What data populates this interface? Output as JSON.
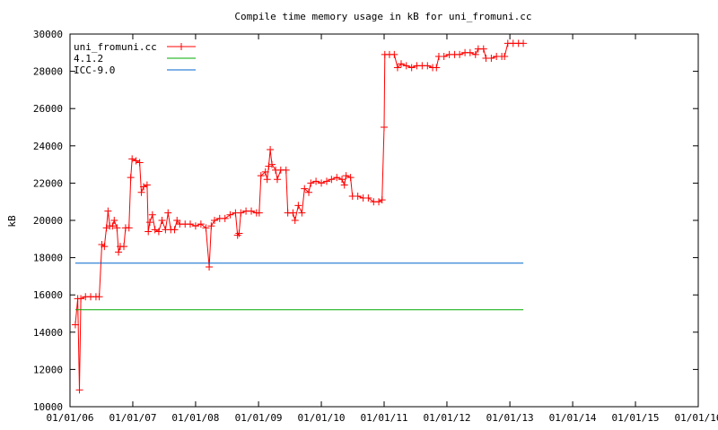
{
  "chart_data": {
    "type": "line",
    "title": "Compile time memory usage in kB for uni_fromuni.cc",
    "xlabel": "",
    "ylabel": "kB",
    "x_scale": "date",
    "xlim": [
      "2006-01-01",
      "2016-01-01"
    ],
    "ylim": [
      10000,
      30000
    ],
    "x_ticks": [
      "01/01/06",
      "01/01/07",
      "01/01/08",
      "01/01/09",
      "01/01/10",
      "01/01/11",
      "01/01/12",
      "01/01/13",
      "01/01/14",
      "01/01/15",
      "01/01/16"
    ],
    "y_ticks": [
      10000,
      12000,
      14000,
      16000,
      18000,
      20000,
      22000,
      24000,
      26000,
      28000,
      30000
    ],
    "legend_position": "top-left",
    "grid": false,
    "series": [
      {
        "name": "uni_fromuni.cc",
        "color": "#ff0000",
        "marker": "plus",
        "points": [
          [
            "2006-02-01",
            14400
          ],
          [
            "2006-02-15",
            15800
          ],
          [
            "2006-02-25",
            10900
          ],
          [
            "2006-03-05",
            15800
          ],
          [
            "2006-04-01",
            15900
          ],
          [
            "2006-05-01",
            15900
          ],
          [
            "2006-06-01",
            15900
          ],
          [
            "2006-06-20",
            15900
          ],
          [
            "2006-07-05",
            18700
          ],
          [
            "2006-07-20",
            18600
          ],
          [
            "2006-08-01",
            19600
          ],
          [
            "2006-08-10",
            20500
          ],
          [
            "2006-08-20",
            19700
          ],
          [
            "2006-09-05",
            19700
          ],
          [
            "2006-09-15",
            20000
          ],
          [
            "2006-10-01",
            19600
          ],
          [
            "2006-10-10",
            18300
          ],
          [
            "2006-10-20",
            18600
          ],
          [
            "2006-11-10",
            18600
          ],
          [
            "2006-11-20",
            19600
          ],
          [
            "2006-12-10",
            19600
          ],
          [
            "2006-12-20",
            22300
          ],
          [
            "2006-12-28",
            23300
          ],
          [
            "2007-01-20",
            23200
          ],
          [
            "2007-02-10",
            23100
          ],
          [
            "2007-02-20",
            21500
          ],
          [
            "2007-03-05",
            21800
          ],
          [
            "2007-03-25",
            21900
          ],
          [
            "2007-04-01",
            19400
          ],
          [
            "2007-04-10",
            19900
          ],
          [
            "2007-04-25",
            20300
          ],
          [
            "2007-05-10",
            19500
          ],
          [
            "2007-06-01",
            19400
          ],
          [
            "2007-06-20",
            20000
          ],
          [
            "2007-07-10",
            19500
          ],
          [
            "2007-07-25",
            20400
          ],
          [
            "2007-08-10",
            19500
          ],
          [
            "2007-09-01",
            19500
          ],
          [
            "2007-09-15",
            20000
          ],
          [
            "2007-10-01",
            19800
          ],
          [
            "2007-11-01",
            19800
          ],
          [
            "2007-12-01",
            19800
          ],
          [
            "2008-01-01",
            19700
          ],
          [
            "2008-02-01",
            19800
          ],
          [
            "2008-03-01",
            19600
          ],
          [
            "2008-03-20",
            17500
          ],
          [
            "2008-04-01",
            19700
          ],
          [
            "2008-04-20",
            20000
          ],
          [
            "2008-05-20",
            20100
          ],
          [
            "2008-06-20",
            20100
          ],
          [
            "2008-07-20",
            20300
          ],
          [
            "2008-08-20",
            20400
          ],
          [
            "2008-09-01",
            19200
          ],
          [
            "2008-09-10",
            19300
          ],
          [
            "2008-09-20",
            20400
          ],
          [
            "2008-10-20",
            20500
          ],
          [
            "2008-11-20",
            20500
          ],
          [
            "2008-12-20",
            20400
          ],
          [
            "2009-01-05",
            20400
          ],
          [
            "2009-01-15",
            22400
          ],
          [
            "2009-02-10",
            22600
          ],
          [
            "2009-02-20",
            22200
          ],
          [
            "2009-03-01",
            22900
          ],
          [
            "2009-03-10",
            23800
          ],
          [
            "2009-03-20",
            23000
          ],
          [
            "2009-04-10",
            22700
          ],
          [
            "2009-04-20",
            22200
          ],
          [
            "2009-05-10",
            22700
          ],
          [
            "2009-06-10",
            22700
          ],
          [
            "2009-06-20",
            20400
          ],
          [
            "2009-07-20",
            20400
          ],
          [
            "2009-08-01",
            20000
          ],
          [
            "2009-08-20",
            20800
          ],
          [
            "2009-09-10",
            20400
          ],
          [
            "2009-09-25",
            21700
          ],
          [
            "2009-10-20",
            21500
          ],
          [
            "2009-11-01",
            22000
          ],
          [
            "2009-12-01",
            22100
          ],
          [
            "2010-01-01",
            22000
          ],
          [
            "2010-02-01",
            22100
          ],
          [
            "2010-03-01",
            22200
          ],
          [
            "2010-04-01",
            22300
          ],
          [
            "2010-05-01",
            22200
          ],
          [
            "2010-05-15",
            21900
          ],
          [
            "2010-05-25",
            22400
          ],
          [
            "2010-06-20",
            22300
          ],
          [
            "2010-07-01",
            21300
          ],
          [
            "2010-08-01",
            21300
          ],
          [
            "2010-09-01",
            21200
          ],
          [
            "2010-10-01",
            21200
          ],
          [
            "2010-11-01",
            21000
          ],
          [
            "2010-12-01",
            21000
          ],
          [
            "2010-12-20",
            21100
          ],
          [
            "2011-01-01",
            25000
          ],
          [
            "2011-01-05",
            28900
          ],
          [
            "2011-02-01",
            28900
          ],
          [
            "2011-03-01",
            28900
          ],
          [
            "2011-03-20",
            28200
          ],
          [
            "2011-04-10",
            28400
          ],
          [
            "2011-05-10",
            28300
          ],
          [
            "2011-06-10",
            28200
          ],
          [
            "2011-07-10",
            28300
          ],
          [
            "2011-08-10",
            28300
          ],
          [
            "2011-09-10",
            28300
          ],
          [
            "2011-10-10",
            28200
          ],
          [
            "2011-11-01",
            28200
          ],
          [
            "2011-11-15",
            28800
          ],
          [
            "2011-12-15",
            28800
          ],
          [
            "2012-01-15",
            28900
          ],
          [
            "2012-02-15",
            28900
          ],
          [
            "2012-03-15",
            28900
          ],
          [
            "2012-04-15",
            29000
          ],
          [
            "2012-05-15",
            29000
          ],
          [
            "2012-06-15",
            28900
          ],
          [
            "2012-07-01",
            29200
          ],
          [
            "2012-08-01",
            29200
          ],
          [
            "2012-08-15",
            28700
          ],
          [
            "2012-09-15",
            28700
          ],
          [
            "2012-10-15",
            28800
          ],
          [
            "2012-11-15",
            28800
          ],
          [
            "2012-12-01",
            28800
          ],
          [
            "2012-12-20",
            29500
          ],
          [
            "2013-01-20",
            29500
          ],
          [
            "2013-02-20",
            29500
          ],
          [
            "2013-03-20",
            29500
          ]
        ]
      },
      {
        "name": "4.1.2",
        "color": "#00aa00",
        "marker": "none",
        "points": [
          [
            "2006-02-01",
            15200
          ],
          [
            "2013-03-20",
            15200
          ]
        ]
      },
      {
        "name": "ICC-9.0",
        "color": "#0066cc",
        "marker": "none",
        "points": [
          [
            "2006-02-01",
            17700
          ],
          [
            "2013-03-20",
            17700
          ]
        ]
      }
    ]
  }
}
